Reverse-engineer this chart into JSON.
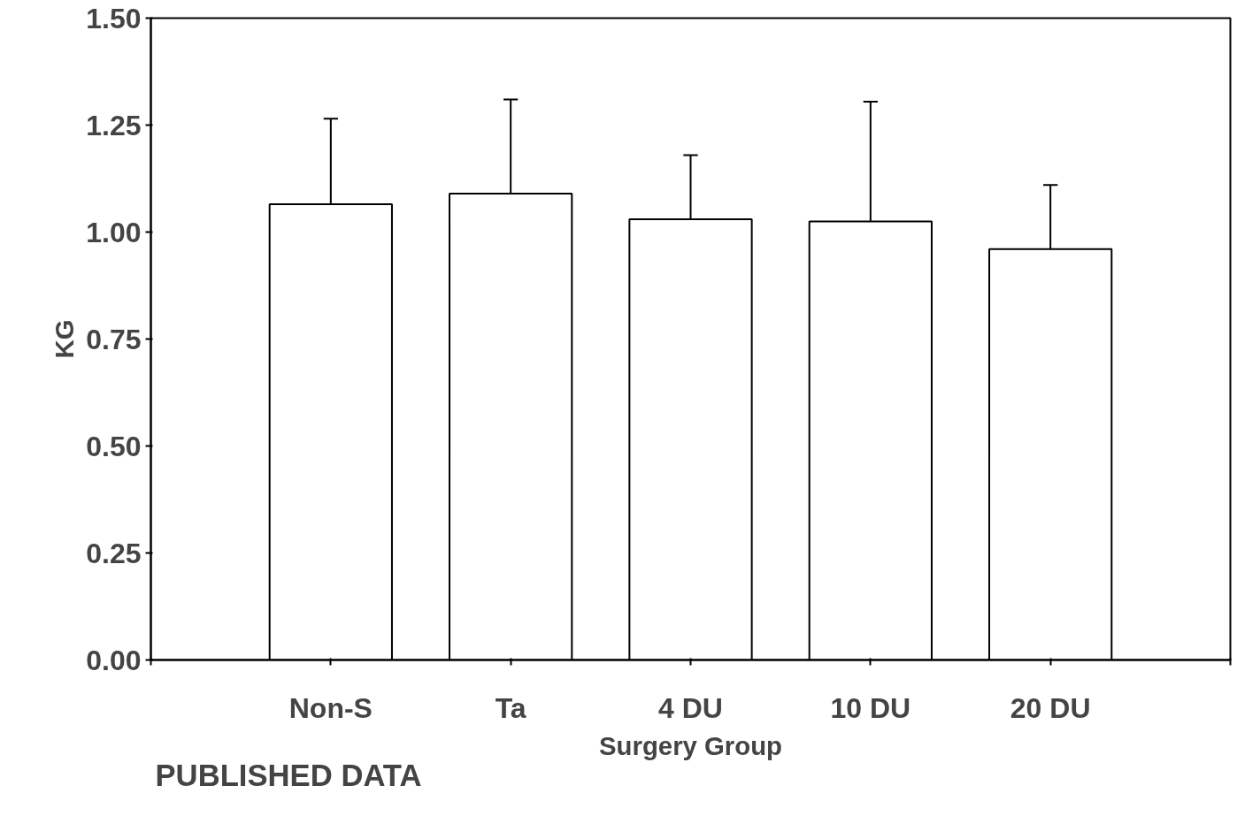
{
  "chart_data": {
    "type": "bar",
    "xlabel": "Surgery Group",
    "ylabel": "KG",
    "categories": [
      "Non-S",
      "Ta",
      "4 DU",
      "10 DU",
      "20 DU"
    ],
    "values": [
      1.065,
      1.09,
      1.03,
      1.025,
      0.96
    ],
    "errors": [
      [
        1.065,
        1.265
      ],
      [
        1.09,
        1.31
      ],
      [
        1.03,
        1.18
      ],
      [
        1.025,
        1.305
      ],
      [
        0.96,
        1.11
      ]
    ],
    "color": "#ffffff",
    "ylim": [
      0,
      1.5
    ],
    "yticks": [
      {
        "value": 0,
        "label": "0.00"
      },
      {
        "value": 0.25,
        "label": "0.25"
      },
      {
        "value": 0.5,
        "label": "0.50"
      },
      {
        "value": 0.75,
        "label": "0.75"
      },
      {
        "value": 1.0,
        "label": "1.00"
      },
      {
        "value": 1.25,
        "label": "1.25"
      },
      {
        "value": 1.5,
        "label": "1.50"
      }
    ],
    "grid": false,
    "annotations": [
      "PUBLISHED DATA"
    ]
  }
}
